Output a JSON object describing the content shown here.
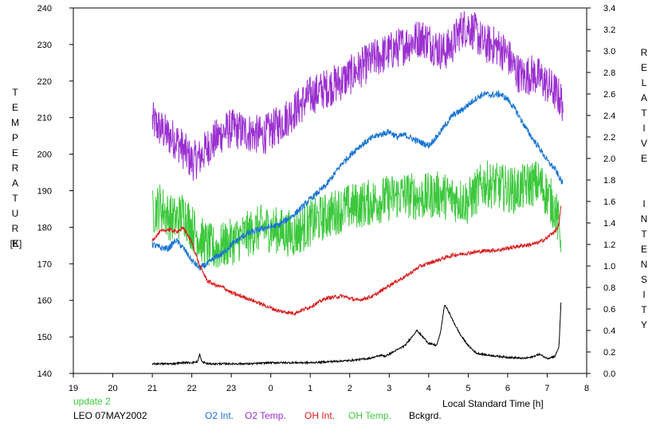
{
  "chart_data": {
    "type": "line",
    "title": "",
    "xlabel": "Local Standard Time [h]",
    "ylabel_left": "TEMPERATURE",
    "ylabel_left_unit": "[K]",
    "ylabel_right": "RELATIVE INTENSITY",
    "x_ticks": [
      "19",
      "20",
      "21",
      "22",
      "23",
      "0",
      "1",
      "2",
      "3",
      "4",
      "5",
      "6",
      "7",
      "8"
    ],
    "x_range": [
      19,
      32
    ],
    "y_left_ticks": [
      "140",
      "150",
      "160",
      "170",
      "180",
      "190",
      "200",
      "210",
      "220",
      "230",
      "240"
    ],
    "y_left_range": [
      140,
      240
    ],
    "y_right_ticks": [
      "0.0",
      "0.2",
      "0.4",
      "0.6",
      "0.8",
      "1.0",
      "1.2",
      "1.4",
      "1.6",
      "1.8",
      "2.0",
      "2.2",
      "2.4",
      "2.6",
      "2.8",
      "3.0",
      "3.2",
      "3.4"
    ],
    "y_right_range": [
      0.0,
      3.4
    ],
    "grid": false,
    "series": [
      {
        "name": "O2 Int.",
        "axis": "right",
        "color": "#1874d2",
        "noise": 0.03,
        "x": [
          21.0,
          21.2,
          21.4,
          21.6,
          21.8,
          22.0,
          22.2,
          22.4,
          22.6,
          22.8,
          23.0,
          23.4,
          23.8,
          24.2,
          24.6,
          25.0,
          25.4,
          25.8,
          26.2,
          26.6,
          27.0,
          27.2,
          27.4,
          27.6,
          27.8,
          28.0,
          28.2,
          28.4,
          28.6,
          28.8,
          29.0,
          29.2,
          29.4,
          29.6,
          29.8,
          30.0,
          30.2,
          30.4,
          30.6,
          30.8,
          31.0,
          31.2,
          31.4
        ],
        "y": [
          1.2,
          1.17,
          1.16,
          1.24,
          1.16,
          1.05,
          0.98,
          1.02,
          1.08,
          1.12,
          1.2,
          1.3,
          1.35,
          1.38,
          1.48,
          1.62,
          1.75,
          1.95,
          2.1,
          2.2,
          2.25,
          2.2,
          2.22,
          2.18,
          2.15,
          2.12,
          2.2,
          2.3,
          2.4,
          2.44,
          2.5,
          2.56,
          2.6,
          2.59,
          2.6,
          2.55,
          2.45,
          2.32,
          2.2,
          2.1,
          1.98,
          1.9,
          1.76
        ]
      },
      {
        "name": "O2 Temp.",
        "axis": "left",
        "color": "#9b30d0",
        "noise": 5.5,
        "x": [
          21.0,
          21.2,
          21.4,
          21.6,
          21.8,
          22.0,
          22.2,
          22.4,
          22.6,
          22.8,
          23.0,
          23.4,
          23.8,
          24.2,
          24.6,
          25.0,
          25.4,
          25.8,
          26.2,
          26.6,
          27.0,
          27.4,
          27.8,
          28.0,
          28.2,
          28.4,
          28.6,
          28.8,
          29.0,
          29.2,
          29.4,
          29.6,
          29.8,
          30.0,
          30.2,
          30.4,
          30.6,
          30.8,
          31.0,
          31.2,
          31.4
        ],
        "y": [
          209,
          207,
          205,
          204,
          201,
          198,
          199,
          202,
          204,
          206,
          207,
          206,
          205,
          208,
          212,
          216,
          218,
          220,
          223,
          226,
          228,
          230,
          232,
          231,
          229,
          228,
          230,
          234,
          235,
          233,
          230,
          230,
          229,
          227,
          223,
          221,
          222,
          221,
          219,
          217,
          214
        ]
      },
      {
        "name": "OH Int.",
        "axis": "right",
        "color": "#d81e1e",
        "noise": 0.018,
        "x": [
          21.0,
          21.2,
          21.4,
          21.6,
          21.8,
          22.0,
          22.2,
          22.4,
          22.6,
          22.8,
          23.0,
          23.4,
          23.8,
          24.2,
          24.6,
          25.0,
          25.4,
          25.8,
          26.2,
          26.6,
          27.0,
          27.4,
          27.8,
          28.2,
          28.6,
          29.0,
          29.4,
          29.8,
          30.2,
          30.6,
          30.8,
          31.0,
          31.1,
          31.2,
          31.3,
          31.35
        ],
        "y": [
          1.24,
          1.32,
          1.34,
          1.32,
          1.35,
          1.22,
          1.0,
          0.86,
          0.82,
          0.8,
          0.75,
          0.7,
          0.64,
          0.58,
          0.56,
          0.62,
          0.7,
          0.72,
          0.68,
          0.72,
          0.82,
          0.9,
          1.0,
          1.05,
          1.1,
          1.12,
          1.14,
          1.15,
          1.18,
          1.2,
          1.22,
          1.26,
          1.3,
          1.32,
          1.38,
          1.55
        ]
      },
      {
        "name": "OH Temp.",
        "axis": "left",
        "color": "#3cc83c",
        "noise": 6.5,
        "x": [
          21.0,
          21.2,
          21.4,
          21.6,
          21.8,
          22.0,
          22.2,
          22.4,
          22.6,
          22.8,
          23.0,
          23.4,
          23.8,
          24.2,
          24.6,
          25.0,
          25.4,
          25.8,
          26.2,
          26.6,
          27.0,
          27.4,
          27.8,
          28.2,
          28.6,
          29.0,
          29.4,
          29.8,
          30.2,
          30.6,
          30.8,
          31.0,
          31.2,
          31.35
        ],
        "y": [
          184,
          186,
          183,
          182,
          184,
          180,
          177,
          175,
          174,
          175,
          176,
          178,
          180,
          179,
          178,
          181,
          183,
          185,
          186,
          187,
          188,
          189,
          188,
          189,
          188,
          187,
          192,
          191,
          190,
          192,
          192,
          189,
          185,
          178
        ]
      },
      {
        "name": "Bckgrd.",
        "axis": "right",
        "color": "#000000",
        "noise": 0.008,
        "x": [
          21.0,
          21.5,
          21.8,
          22.0,
          22.15,
          22.2,
          22.25,
          22.4,
          23.0,
          23.5,
          24.0,
          24.5,
          25.0,
          25.5,
          26.0,
          26.5,
          26.8,
          26.9,
          27.0,
          27.4,
          27.7,
          27.9,
          28.0,
          28.2,
          28.3,
          28.4,
          28.5,
          28.6,
          28.8,
          29.0,
          29.2,
          29.5,
          30.0,
          30.4,
          30.6,
          30.8,
          31.0,
          31.2,
          31.3,
          31.35
        ],
        "y": [
          0.09,
          0.09,
          0.1,
          0.1,
          0.11,
          0.18,
          0.11,
          0.09,
          0.09,
          0.09,
          0.1,
          0.1,
          0.1,
          0.11,
          0.12,
          0.14,
          0.17,
          0.16,
          0.18,
          0.26,
          0.4,
          0.32,
          0.28,
          0.26,
          0.38,
          0.64,
          0.58,
          0.5,
          0.36,
          0.26,
          0.19,
          0.17,
          0.15,
          0.14,
          0.15,
          0.18,
          0.14,
          0.16,
          0.25,
          0.66
        ]
      }
    ]
  },
  "annotations": {
    "update": "update 2",
    "station": "LEO 07MAY2002",
    "update_color": "#3cc83c"
  },
  "legend": [
    {
      "label": "O2 Int.",
      "color": "#1874d2"
    },
    {
      "label": "O2 Temp.",
      "color": "#9b30d0"
    },
    {
      "label": "OH Int.",
      "color": "#d81e1e"
    },
    {
      "label": "OH Temp.",
      "color": "#3cc83c"
    },
    {
      "label": "Bckgrd.",
      "color": "#000000"
    }
  ]
}
